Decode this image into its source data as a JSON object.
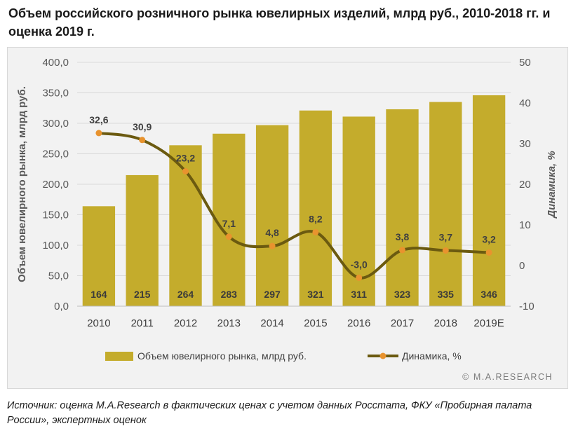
{
  "title": "Объем российского розничного рынка ювелирных изделий, млрд руб., 2010-2018 гг. и оценка 2019 г.",
  "watermark": "© M.A.RESEARCH",
  "source": "Источник: оценка M.A.Research в фактических ценах с учетом данных Росстата, ФКУ «Пробирная палата России», экспертных оценок",
  "chart_data": {
    "type": "bar",
    "categories": [
      "2010",
      "2011",
      "2012",
      "2013",
      "2014",
      "2015",
      "2016",
      "2017",
      "2018",
      "2019E"
    ],
    "series": [
      {
        "name": "Объем ювелирного рынка, млрд руб.",
        "type": "bar",
        "axis": "left",
        "values": [
          164,
          215,
          264,
          283,
          297,
          321,
          311,
          323,
          335,
          346
        ],
        "labels": [
          "164",
          "215",
          "264",
          "283",
          "297",
          "321",
          "311",
          "323",
          "335",
          "346"
        ],
        "color": "#c4ac2c"
      },
      {
        "name": "Динамика, %",
        "type": "line",
        "axis": "right",
        "values": [
          32.6,
          30.9,
          23.2,
          7.1,
          4.8,
          8.2,
          -3.0,
          3.8,
          3.7,
          3.2
        ],
        "labels": [
          "32,6",
          "30,9",
          "23,2",
          "7,1",
          "4,8",
          "8,2",
          "-3,0",
          "3,8",
          "3,7",
          "3,2"
        ],
        "color": "#6b5a10",
        "marker_color": "#e8932e"
      }
    ],
    "ylabel": "Объем ювелирного рынка, млрд руб.",
    "y2label": "Динамика, %",
    "ylim": [
      0,
      400
    ],
    "y2lim": [
      -10,
      50
    ],
    "yticks": [
      "0,0",
      "50,0",
      "100,0",
      "150,0",
      "200,0",
      "250,0",
      "300,0",
      "350,0",
      "400,0"
    ],
    "y2ticks": [
      "-10",
      "0",
      "10",
      "20",
      "30",
      "40",
      "50"
    ],
    "grid": true,
    "legend": "bottom"
  }
}
